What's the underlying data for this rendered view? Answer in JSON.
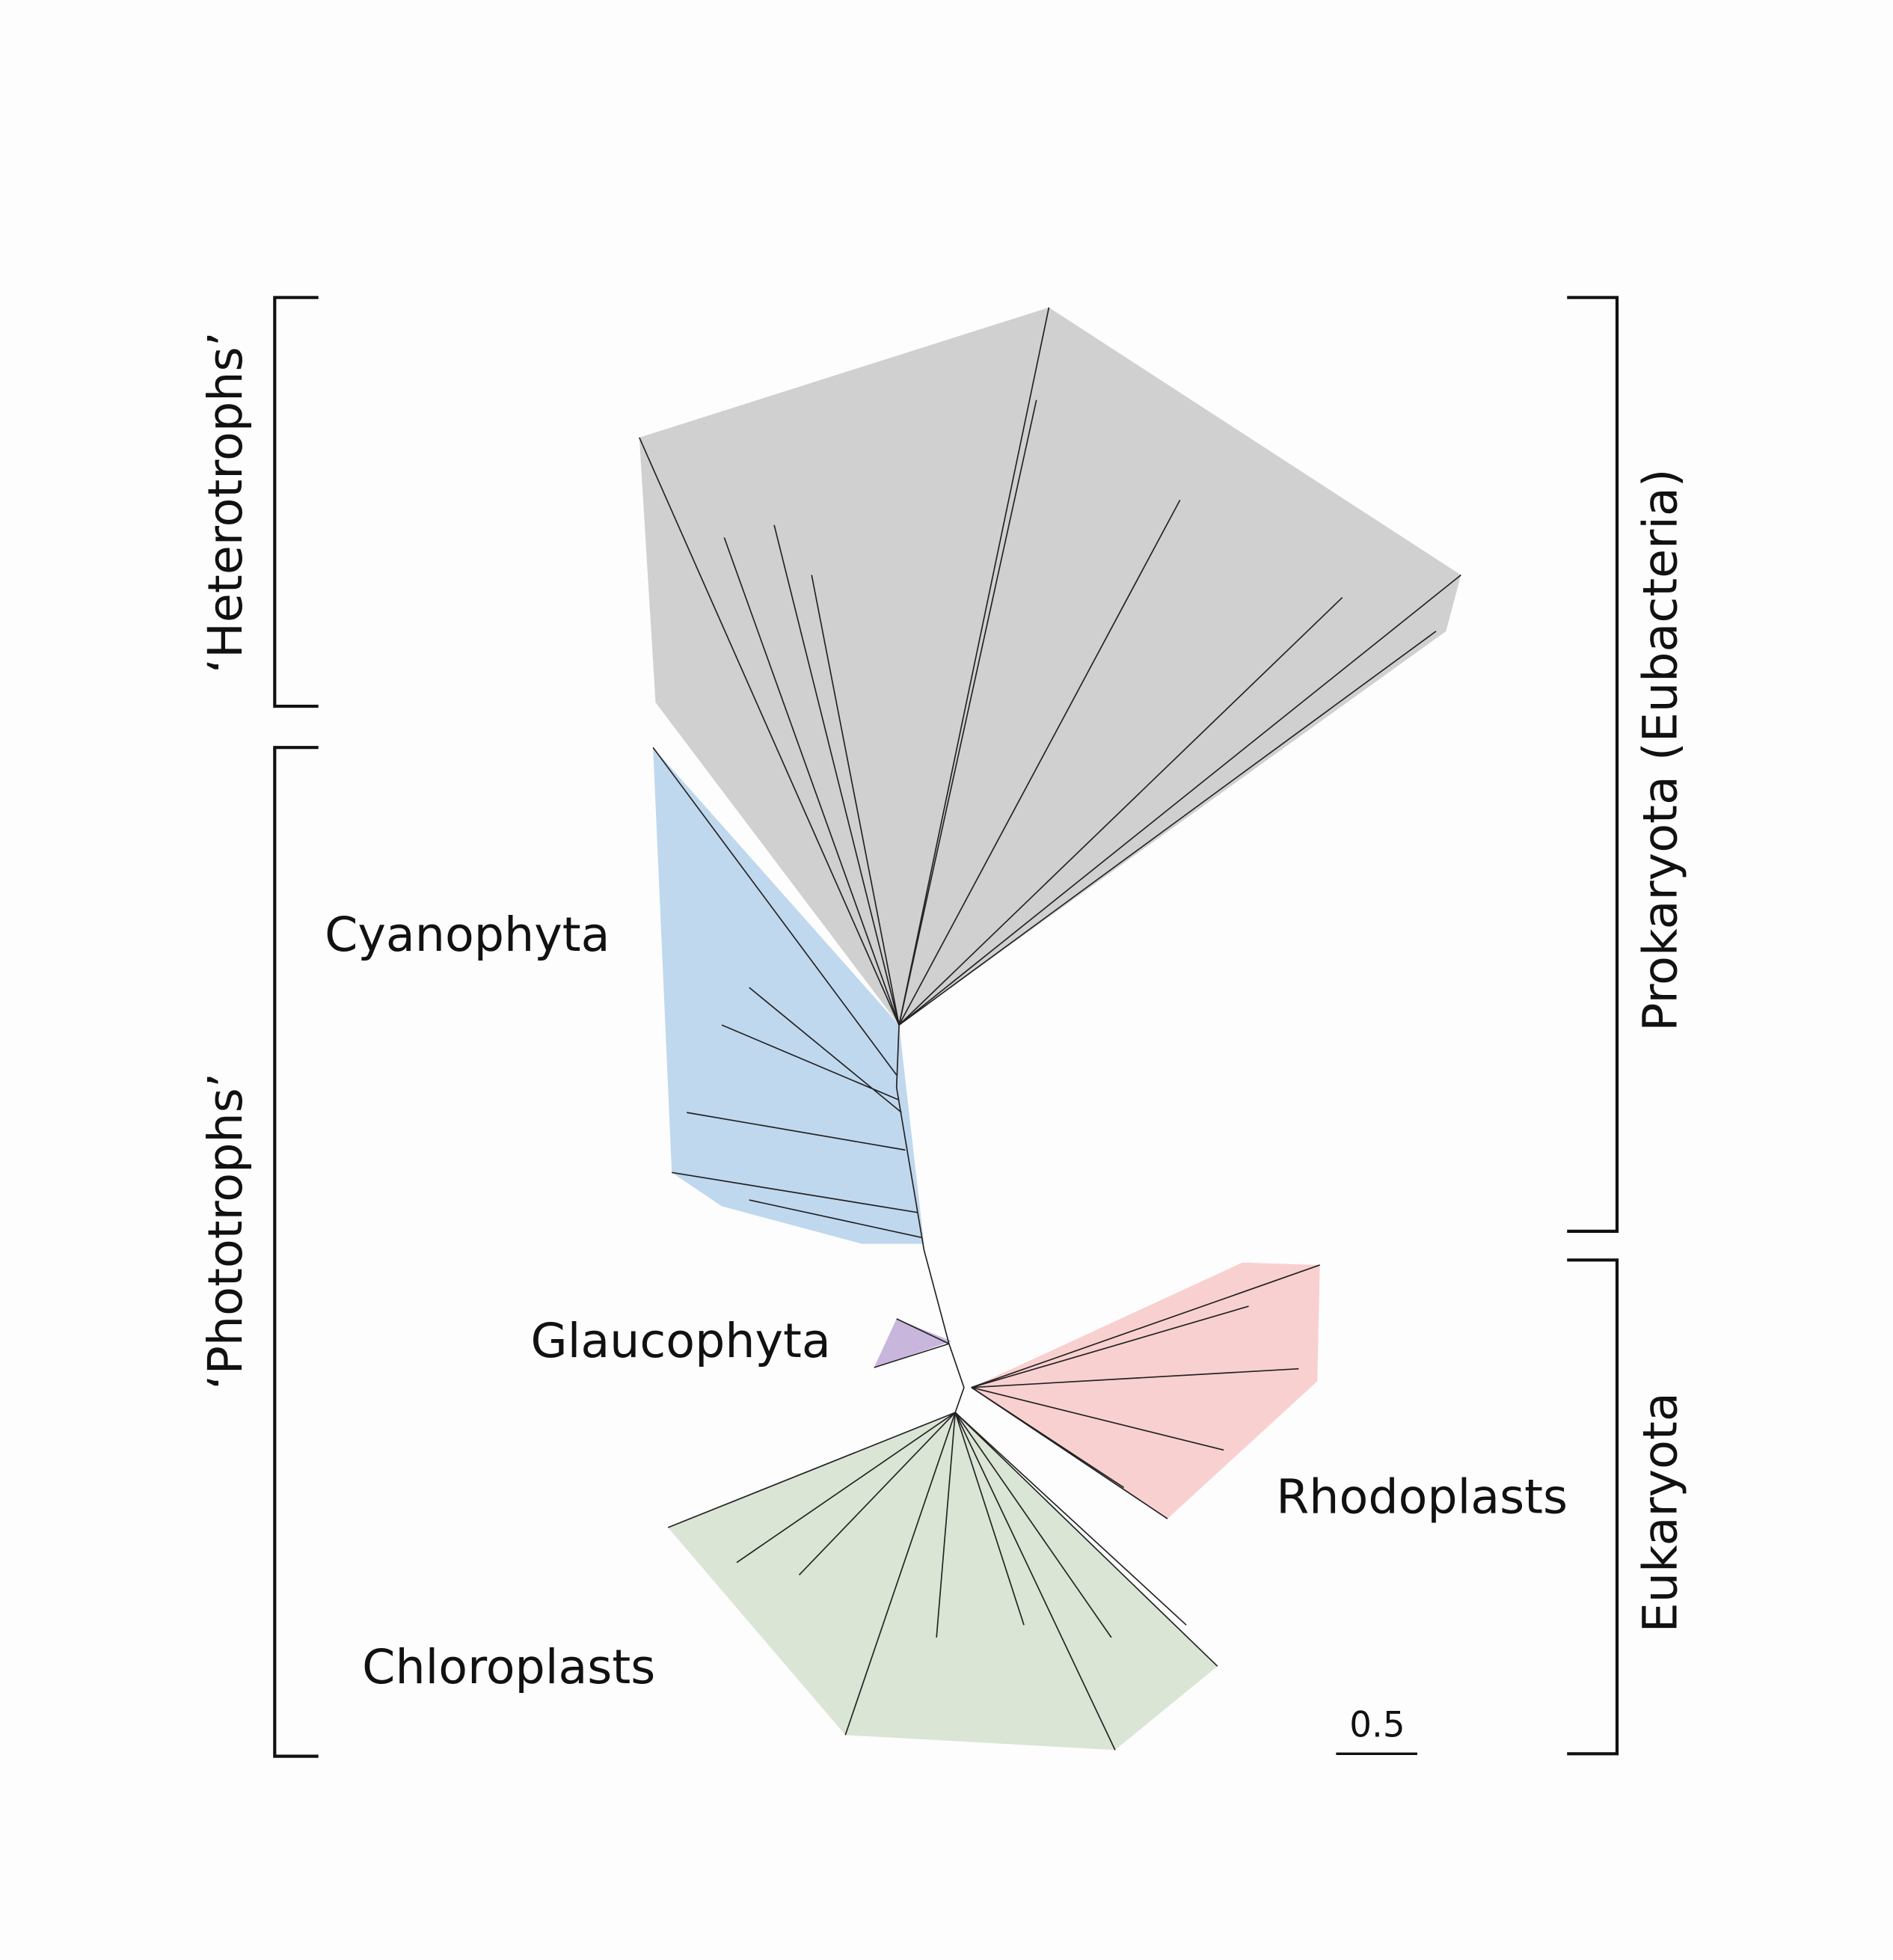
{
  "groups": {
    "heterotrophs": "‘Heterotrophs’",
    "phototrophs": "‘Phototrophs’",
    "prokaryota": "Prokaryota (Eubacteria)",
    "eukaryota": "Eukaryota"
  },
  "clades": {
    "cyanophyta": "Cyanophyta",
    "glaucophyta": "Glaucophyta",
    "rhodoplasts": "Rhodoplasts",
    "chloroplasts": "Chloroplasts"
  },
  "scale_bar": "0.5"
}
